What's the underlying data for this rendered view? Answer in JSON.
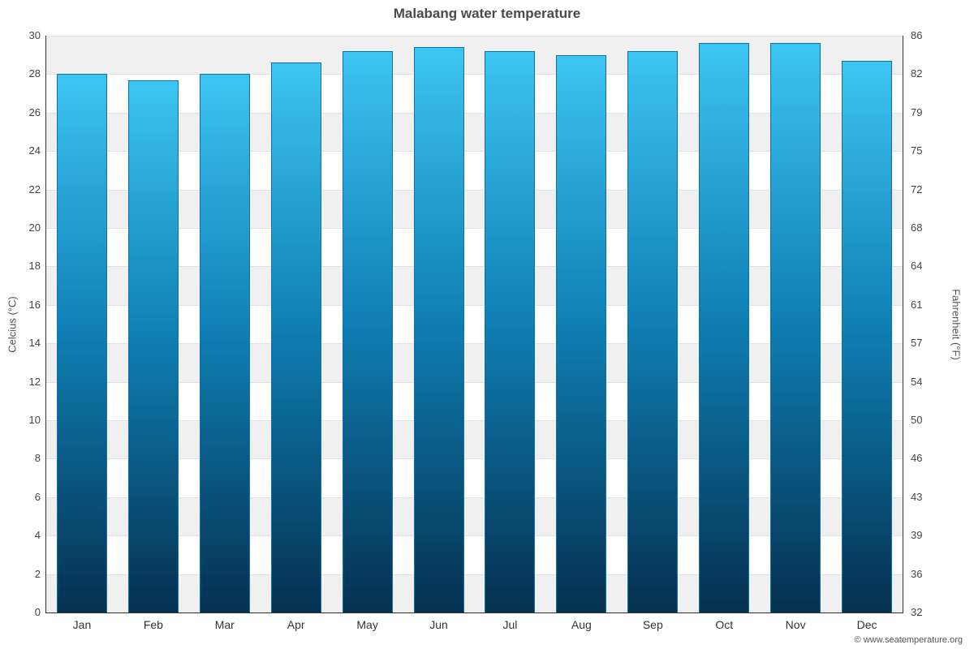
{
  "chart_data": {
    "type": "bar",
    "title": "Malabang water temperature",
    "categories": [
      "Jan",
      "Feb",
      "Mar",
      "Apr",
      "May",
      "Jun",
      "Jul",
      "Aug",
      "Sep",
      "Oct",
      "Nov",
      "Dec"
    ],
    "values": [
      28.0,
      27.7,
      28.0,
      28.6,
      29.2,
      29.4,
      29.2,
      29.0,
      29.2,
      29.6,
      29.6,
      28.7
    ],
    "ylabel_left": "Celcius (°C)",
    "ylabel_right": "Fahrenheit (°F)",
    "xlabel": "",
    "ylim": [
      0,
      30
    ],
    "y_left_ticks": [
      0,
      2,
      4,
      6,
      8,
      10,
      12,
      14,
      16,
      18,
      20,
      22,
      24,
      26,
      28,
      30
    ],
    "y_right_ticks": [
      32,
      36,
      39,
      43,
      46,
      50,
      54,
      57,
      61,
      64,
      68,
      72,
      75,
      79,
      82,
      86
    ],
    "grid": true,
    "legend": "none",
    "footer": "© www.seatemperature.org",
    "colors": {
      "bar_top": "#3dc5f1",
      "bar_mid": "#0f7fb4",
      "bar_bottom": "#05304f",
      "bar_border": "#1173a5",
      "band": "#f0f0f0",
      "gridline": "#e2e2e2",
      "axis": "#333333",
      "title": "#4a4a4a",
      "tick": "#444444"
    }
  }
}
